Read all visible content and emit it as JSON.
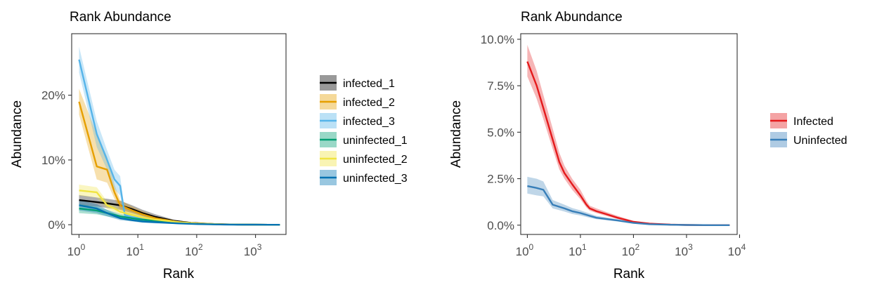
{
  "chart_data": [
    {
      "type": "line",
      "title": "Rank Abundance",
      "xlabel": "Rank",
      "ylabel": "Abundance",
      "x_scale": "log10",
      "xlim": [
        0.75,
        3300
      ],
      "ylim": [
        -0.015,
        0.295
      ],
      "x_ticks": [
        1,
        10,
        100,
        1000
      ],
      "y_ticks": [
        0,
        0.1,
        0.2
      ],
      "y_tick_labels": [
        "0%",
        "10%",
        "20%"
      ],
      "legend_position": "right",
      "band": "shaded ribbon around each line",
      "series": [
        {
          "name": "infected_1",
          "color": "#000000",
          "x": [
            1,
            2,
            3,
            5,
            8,
            12,
            20,
            40,
            80,
            200,
            500,
            1000,
            2600
          ],
          "y": [
            0.038,
            0.035,
            0.033,
            0.03,
            0.024,
            0.018,
            0.012,
            0.006,
            0.003,
            0.001,
            0.0003,
            0.0001,
            0.0
          ],
          "ymin": [
            0.03,
            0.028,
            0.026,
            0.023,
            0.018,
            0.013,
            0.008,
            0.004,
            0.002,
            0.0005,
            0.0001,
            0.0,
            0.0
          ],
          "ymax": [
            0.046,
            0.042,
            0.04,
            0.037,
            0.03,
            0.023,
            0.016,
            0.008,
            0.004,
            0.0015,
            0.0005,
            0.0002,
            0.0
          ]
        },
        {
          "name": "infected_2",
          "color": "#E69F00",
          "x": [
            1,
            2,
            3,
            4,
            5,
            8,
            12,
            20,
            50,
            100,
            300,
            1000,
            2600
          ],
          "y": [
            0.19,
            0.09,
            0.085,
            0.05,
            0.03,
            0.022,
            0.016,
            0.01,
            0.004,
            0.002,
            0.0005,
            0.0001,
            0.0
          ],
          "ymin": [
            0.17,
            0.07,
            0.065,
            0.04,
            0.022,
            0.016,
            0.011,
            0.007,
            0.002,
            0.001,
            0.0002,
            0.0,
            0.0
          ],
          "ymax": [
            0.21,
            0.14,
            0.105,
            0.062,
            0.038,
            0.028,
            0.021,
            0.013,
            0.006,
            0.003,
            0.0008,
            0.0002,
            0.0
          ]
        },
        {
          "name": "infected_3",
          "color": "#56B4E9",
          "x": [
            1,
            2,
            3,
            4,
            5,
            6,
            8,
            12,
            20,
            50,
            100,
            300,
            1000,
            2600
          ],
          "y": [
            0.255,
            0.14,
            0.1,
            0.07,
            0.06,
            0.015,
            0.012,
            0.009,
            0.006,
            0.003,
            0.0015,
            0.0004,
            0.0001,
            0.0
          ],
          "ymin": [
            0.235,
            0.12,
            0.085,
            0.055,
            0.045,
            0.01,
            0.008,
            0.006,
            0.004,
            0.002,
            0.001,
            0.0002,
            0.0,
            0.0
          ],
          "ymax": [
            0.275,
            0.16,
            0.115,
            0.085,
            0.075,
            0.02,
            0.016,
            0.012,
            0.008,
            0.004,
            0.002,
            0.0006,
            0.0002,
            0.0
          ]
        },
        {
          "name": "uninfected_1",
          "color": "#009E73",
          "x": [
            1,
            2,
            3,
            5,
            8,
            12,
            20,
            50,
            100,
            300,
            1000,
            2600
          ],
          "y": [
            0.025,
            0.022,
            0.018,
            0.013,
            0.01,
            0.008,
            0.006,
            0.003,
            0.0015,
            0.0004,
            0.0001,
            0.0
          ],
          "ymin": [
            0.018,
            0.016,
            0.013,
            0.009,
            0.007,
            0.005,
            0.004,
            0.002,
            0.001,
            0.0002,
            0.0,
            0.0
          ],
          "ymax": [
            0.032,
            0.028,
            0.023,
            0.017,
            0.013,
            0.011,
            0.008,
            0.004,
            0.002,
            0.0006,
            0.0002,
            0.0
          ]
        },
        {
          "name": "uninfected_2",
          "color": "#F0E442",
          "x": [
            1,
            2,
            3,
            4,
            5,
            8,
            12,
            20,
            50,
            100,
            300,
            1000,
            2600
          ],
          "y": [
            0.053,
            0.05,
            0.03,
            0.025,
            0.02,
            0.015,
            0.011,
            0.008,
            0.004,
            0.002,
            0.0005,
            0.0001,
            0.0
          ],
          "ymin": [
            0.045,
            0.042,
            0.024,
            0.02,
            0.016,
            0.011,
            0.008,
            0.006,
            0.003,
            0.001,
            0.0003,
            0.0,
            0.0
          ],
          "ymax": [
            0.062,
            0.058,
            0.036,
            0.03,
            0.025,
            0.019,
            0.014,
            0.01,
            0.005,
            0.003,
            0.0007,
            0.0002,
            0.0
          ]
        },
        {
          "name": "uninfected_3",
          "color": "#0072B2",
          "x": [
            1,
            2,
            3,
            5,
            8,
            12,
            20,
            50,
            100,
            300,
            1000,
            2600
          ],
          "y": [
            0.03,
            0.025,
            0.018,
            0.01,
            0.007,
            0.005,
            0.004,
            0.002,
            0.001,
            0.0003,
            0.0001,
            0.0
          ],
          "ymin": [
            0.022,
            0.018,
            0.013,
            0.007,
            0.005,
            0.003,
            0.002,
            0.001,
            0.0005,
            0.0001,
            0.0,
            0.0
          ],
          "ymax": [
            0.038,
            0.032,
            0.023,
            0.014,
            0.01,
            0.007,
            0.006,
            0.003,
            0.0015,
            0.0005,
            0.0002,
            0.0
          ]
        }
      ]
    },
    {
      "type": "line",
      "title": "Rank Abundance",
      "xlabel": "Rank",
      "ylabel": "Abundance",
      "x_scale": "log10",
      "xlim": [
        0.75,
        9000
      ],
      "ylim": [
        -0.005,
        0.103
      ],
      "x_ticks": [
        1,
        10,
        100,
        1000,
        10000
      ],
      "y_ticks": [
        0,
        0.025,
        0.05,
        0.075,
        0.1
      ],
      "y_tick_labels": [
        "0.0%",
        "2.5%",
        "5.0%",
        "7.5%",
        "10.0%"
      ],
      "legend_position": "right",
      "band": "shaded ribbon around each line",
      "series": [
        {
          "name": "Infected",
          "color": "#E41A1C",
          "x": [
            1,
            1.5,
            2,
            3,
            4,
            5,
            7,
            10,
            13,
            15,
            20,
            30,
            50,
            100,
            200,
            500,
            1000,
            3000,
            6500
          ],
          "y": [
            0.088,
            0.075,
            0.063,
            0.046,
            0.034,
            0.028,
            0.022,
            0.016,
            0.011,
            0.009,
            0.0075,
            0.006,
            0.004,
            0.0018,
            0.0008,
            0.0003,
            0.0001,
            0.0,
            0.0
          ],
          "ymin": [
            0.08,
            0.068,
            0.057,
            0.041,
            0.03,
            0.025,
            0.019,
            0.014,
            0.0095,
            0.0078,
            0.0065,
            0.005,
            0.0033,
            0.0014,
            0.0006,
            0.0002,
            0.0,
            0.0,
            0.0
          ],
          "ymax": [
            0.097,
            0.083,
            0.07,
            0.052,
            0.039,
            0.032,
            0.025,
            0.019,
            0.013,
            0.0105,
            0.009,
            0.0072,
            0.005,
            0.0023,
            0.001,
            0.0004,
            0.0002,
            0.0,
            0.0
          ]
        },
        {
          "name": "Uninfected",
          "color": "#377EB8",
          "x": [
            1,
            1.5,
            2,
            3,
            5,
            7,
            10,
            15,
            20,
            50,
            100,
            200,
            500,
            1000,
            3000,
            6500
          ],
          "y": [
            0.021,
            0.02,
            0.019,
            0.011,
            0.009,
            0.0075,
            0.0065,
            0.005,
            0.004,
            0.0025,
            0.0012,
            0.0005,
            0.0002,
            0.0001,
            0.0,
            0.0
          ],
          "ymin": [
            0.017,
            0.016,
            0.0155,
            0.009,
            0.0073,
            0.006,
            0.0052,
            0.004,
            0.0032,
            0.002,
            0.0009,
            0.0004,
            0.0001,
            0.0,
            0.0,
            0.0
          ],
          "ymax": [
            0.026,
            0.025,
            0.0235,
            0.0135,
            0.011,
            0.0092,
            0.008,
            0.0062,
            0.005,
            0.0032,
            0.0016,
            0.0007,
            0.0003,
            0.0002,
            0.0,
            0.0
          ]
        }
      ]
    }
  ]
}
